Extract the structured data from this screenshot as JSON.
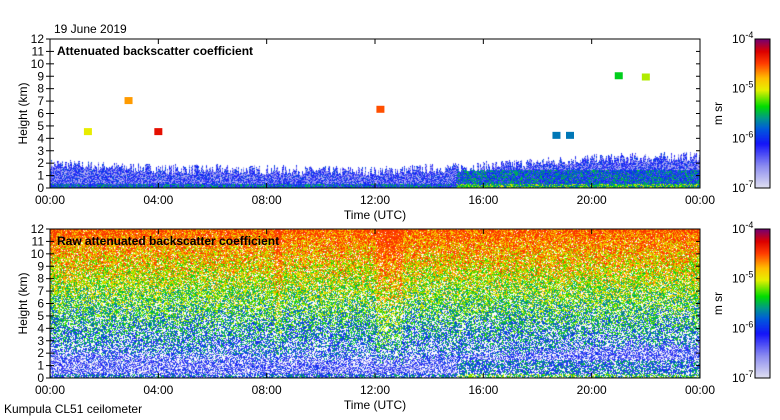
{
  "header": {
    "date": "19 June 2019"
  },
  "footer": {
    "instrument": "Kumpula CL51 ceilometer"
  },
  "colors": {
    "axis": "#000000",
    "background": "#ffffff"
  },
  "chart_data": [
    {
      "type": "heatmap",
      "title": "Attenuated backscatter coefficient",
      "xlabel": "Time (UTC)",
      "ylabel": "Height (km)",
      "xlim": [
        0,
        24
      ],
      "ylim": [
        0,
        12
      ],
      "x_ticks": [
        "00:00",
        "04:00",
        "08:00",
        "12:00",
        "16:00",
        "20:00",
        "00:00"
      ],
      "y_ticks": [
        "0",
        "1",
        "2",
        "3",
        "4",
        "5",
        "6",
        "7",
        "8",
        "9",
        "10",
        "11",
        "12"
      ],
      "colorbar": {
        "label": "m-1 sr-1",
        "scale": "log",
        "range": [
          1e-07,
          0.0001
        ],
        "ticks": [
          "10-7",
          "10-6",
          "10-5",
          "10-4"
        ]
      },
      "boundary_layer_top_km": [
        [
          0,
          2.0
        ],
        [
          4,
          1.6
        ],
        [
          8,
          1.5
        ],
        [
          12,
          1.4
        ],
        [
          16,
          1.8
        ],
        [
          20,
          2.4
        ],
        [
          24,
          2.6
        ]
      ],
      "cloud_features": [
        {
          "time_h": 1.4,
          "height_km": 4.5,
          "intensity": 1e-05
        },
        {
          "time_h": 2.9,
          "height_km": 7.0,
          "intensity": 2e-05
        },
        {
          "time_h": 4.0,
          "height_km": 4.5,
          "intensity": 5e-05
        },
        {
          "time_h": 12.2,
          "height_km": 6.3,
          "intensity": 3e-05
        },
        {
          "time_h": 18.7,
          "height_km": 4.2,
          "intensity": 2e-06
        },
        {
          "time_h": 19.2,
          "height_km": 4.2,
          "intensity": 2e-06
        },
        {
          "time_h": 21.0,
          "height_km": 9.0,
          "intensity": 4e-06
        },
        {
          "time_h": 22.0,
          "height_km": 8.9,
          "intensity": 8e-06
        }
      ],
      "noise": false
    },
    {
      "type": "heatmap",
      "title": "Raw attenuated backscatter coefficient",
      "xlabel": "Time (UTC)",
      "ylabel": "Height (km)",
      "xlim": [
        0,
        24
      ],
      "ylim": [
        0,
        12
      ],
      "x_ticks": [
        "00:00",
        "04:00",
        "08:00",
        "12:00",
        "16:00",
        "20:00",
        "00:00"
      ],
      "y_ticks": [
        "0",
        "1",
        "2",
        "3",
        "4",
        "5",
        "6",
        "7",
        "8",
        "9",
        "10",
        "11",
        "12"
      ],
      "colorbar": {
        "label": "m-1 sr-1",
        "scale": "log",
        "range": [
          1e-07,
          0.0001
        ],
        "ticks": [
          "10-7",
          "10-6",
          "10-5",
          "10-4"
        ]
      },
      "boundary_layer_top_km": [
        [
          0,
          2.0
        ],
        [
          4,
          1.6
        ],
        [
          8,
          1.5
        ],
        [
          12,
          1.4
        ],
        [
          16,
          1.8
        ],
        [
          20,
          2.4
        ],
        [
          24,
          2.6
        ]
      ],
      "cloud_features": [],
      "noise": true
    }
  ]
}
